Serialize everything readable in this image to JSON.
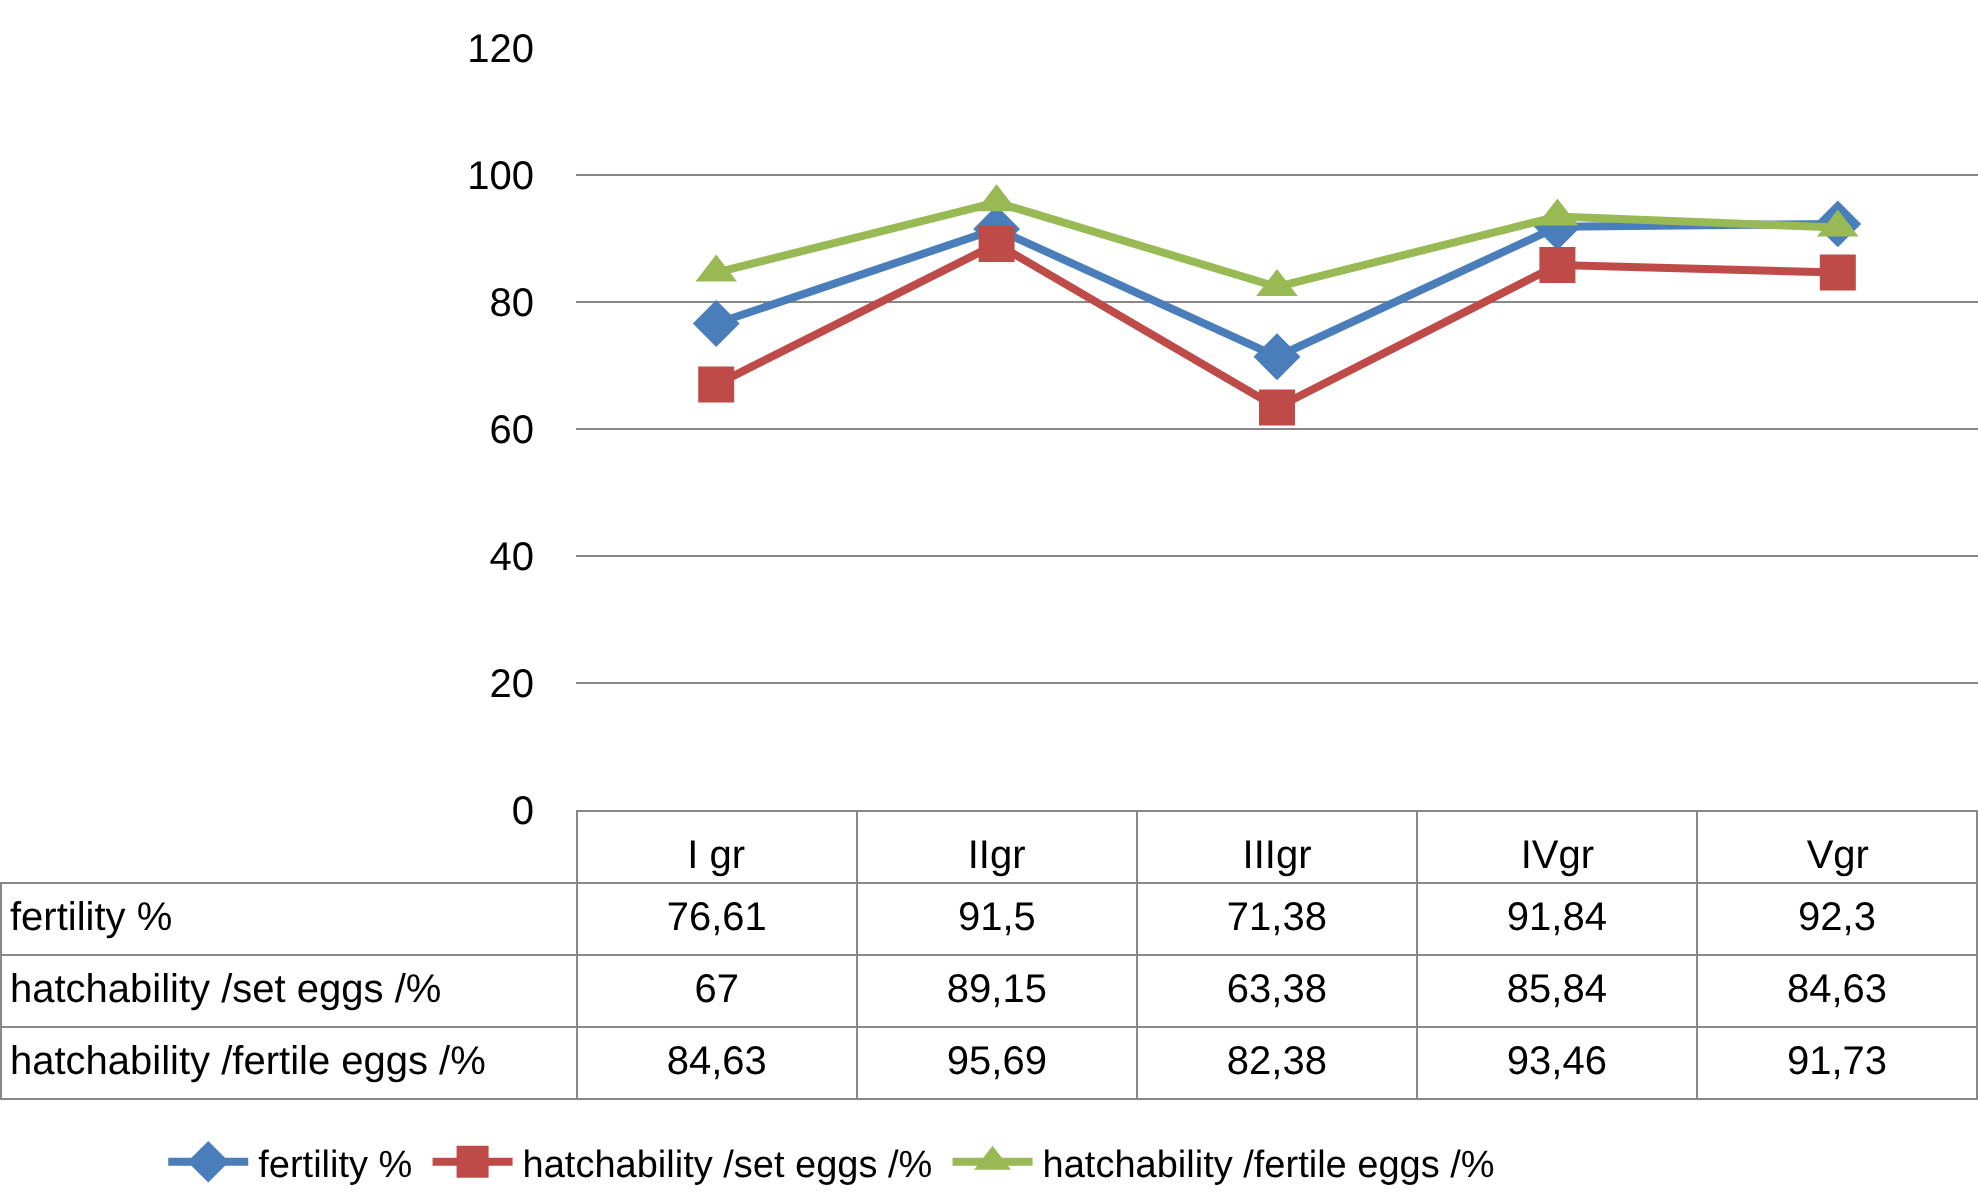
{
  "chart_data": {
    "type": "line",
    "categories": [
      "I gr",
      "IIgr",
      "IIIgr",
      "IVgr",
      "Vgr"
    ],
    "series": [
      {
        "name": "fertility %",
        "color": "#4a7ebb",
        "marker": "diamond",
        "values": [
          76.61,
          91.5,
          71.38,
          91.84,
          92.3
        ],
        "value_labels": [
          "76,61",
          "91,5",
          "71,38",
          "91,84",
          "92,3"
        ]
      },
      {
        "name": "hatchability /set eggs /%",
        "color": "#be4b48",
        "marker": "square",
        "values": [
          67,
          89.15,
          63.38,
          85.84,
          84.63
        ],
        "value_labels": [
          "67",
          "89,15",
          "63,38",
          "85,84",
          "84,63"
        ]
      },
      {
        "name": "hatchability /fertile eggs /%",
        "color": "#98b954",
        "marker": "triangle",
        "values": [
          84.63,
          95.69,
          82.38,
          93.46,
          91.73
        ],
        "value_labels": [
          "84,63",
          "95,69",
          "82,38",
          "93,46",
          "91,73"
        ]
      }
    ],
    "ylim": [
      0,
      120
    ],
    "yticks": [
      0,
      20,
      40,
      60,
      80,
      100,
      120
    ],
    "grid": "y",
    "legend": "bottom",
    "line_style": "solid"
  }
}
